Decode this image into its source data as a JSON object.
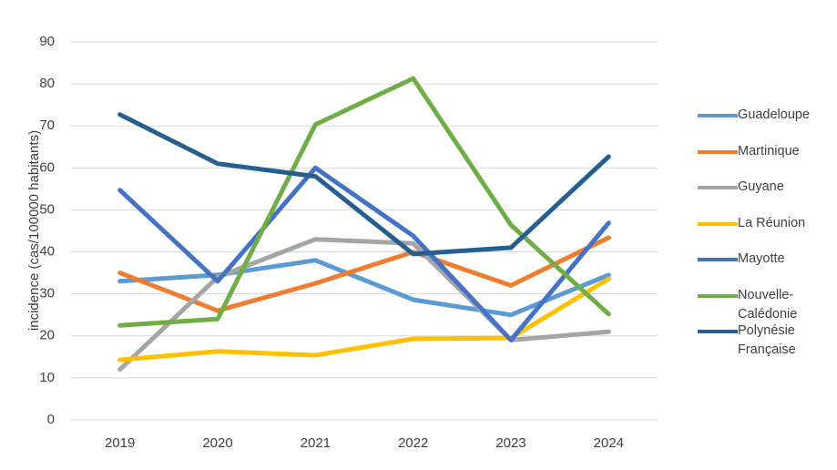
{
  "chart_data": {
    "type": "line",
    "y_label": "incidence (cas/100000 habitants)",
    "categories": [
      "2019",
      "2020",
      "2021",
      "2022",
      "2023",
      "2024"
    ],
    "series": [
      {
        "name": "Guadeloupe",
        "color": "#5b9bd5",
        "values": [
          33,
          34.5,
          38,
          28.6,
          25,
          34.5
        ]
      },
      {
        "name": "Martinique",
        "color": "#ed7d31",
        "values": [
          35,
          26,
          32.5,
          40,
          32,
          43.4
        ]
      },
      {
        "name": "Guyane",
        "color": "#a5a5a5",
        "values": [
          12,
          34,
          43,
          42,
          19,
          21
        ]
      },
      {
        "name": "La Réunion",
        "color": "#ffc000",
        "values": [
          14.3,
          16.3,
          15.4,
          19.3,
          19.5,
          33.6
        ]
      },
      {
        "name": "Mayotte",
        "color": "#4472c4",
        "values": [
          54.7,
          33,
          60,
          43.8,
          19,
          46.9
        ]
      },
      {
        "name": "Nouvelle-Calédonie",
        "color": "#70ad47",
        "values": [
          22.5,
          24,
          70.3,
          81.3,
          46.4,
          25.2
        ]
      },
      {
        "name": "Polynésie Française",
        "color": "#255e91",
        "values": [
          72.7,
          61,
          58,
          39.5,
          41,
          62.7
        ]
      }
    ],
    "ylim": [
      0,
      90
    ],
    "yticks": [
      0,
      10,
      20,
      30,
      40,
      50,
      60,
      70,
      80,
      90
    ],
    "grid": true,
    "legend": "right"
  }
}
